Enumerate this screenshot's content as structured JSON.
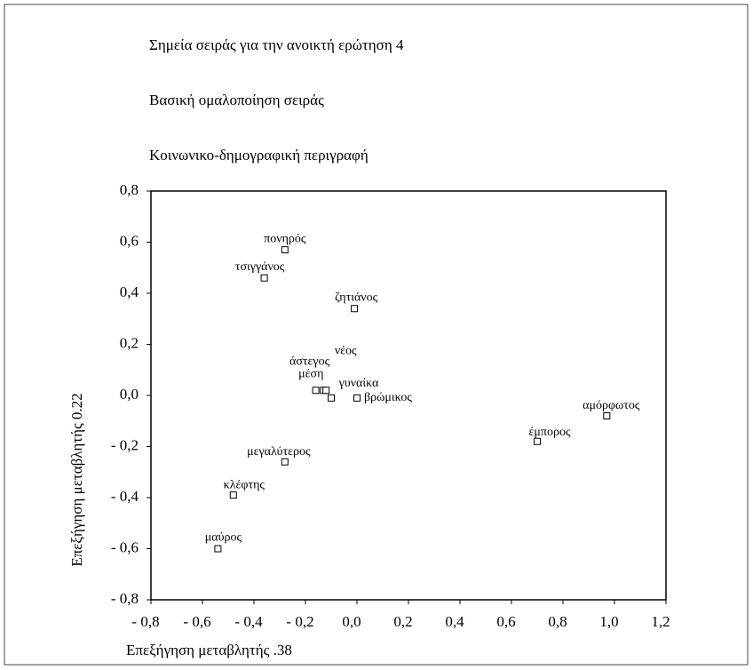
{
  "chart_data": {
    "type": "scatter",
    "title": "Σημεία σειράς για την ανοικτή ερώτηση 4",
    "subtitle": "Βασική ομαλοποίηση σειράς",
    "subtitle2": "Κοινωνικο-δημογραφική περιγραφή",
    "xlabel": "Επεξήγηση μεταβλητής .38",
    "ylabel": "Επεξήγηση μεταβλητής 0.22",
    "xlim": [
      -0.8,
      1.2
    ],
    "ylim": [
      -0.8,
      0.8
    ],
    "xticks": [
      {
        "value": -0.8,
        "label": "- 0,8"
      },
      {
        "value": -0.6,
        "label": "- 0,6"
      },
      {
        "value": -0.4,
        "label": "- 0,4"
      },
      {
        "value": -0.2,
        "label": "- 0,2"
      },
      {
        "value": 0,
        "label": "0,0"
      },
      {
        "value": 0.2,
        "label": "0,2"
      },
      {
        "value": 0.4,
        "label": "0,4"
      },
      {
        "value": 0.6,
        "label": "0,6"
      },
      {
        "value": 0.8,
        "label": "0,8"
      },
      {
        "value": 1,
        "label": "1,0"
      },
      {
        "value": 1.2,
        "label": "1,2"
      }
    ],
    "yticks": [
      {
        "value": 0.8,
        "label": "0,8"
      },
      {
        "value": 0.6,
        "label": "0,6"
      },
      {
        "value": 0.4,
        "label": "0,4"
      },
      {
        "value": 0.2,
        "label": "0,2"
      },
      {
        "value": 0,
        "label": "0,0"
      },
      {
        "value": -0.2,
        "label": "- 0,2"
      },
      {
        "value": -0.4,
        "label": "- 0,4"
      },
      {
        "value": -0.6,
        "label": "- 0,6"
      },
      {
        "value": -0.8,
        "label": "- 0,8"
      }
    ],
    "labels": [
      "πονηρός",
      "τσιγγάνος",
      "ζητιάνος",
      "άστεγος",
      "μέση",
      "νέος",
      "γυναίκα",
      "βρώμικος",
      "αμόρφωτος",
      "έμπορος",
      "μεγαλύτερος",
      "κλέφτης",
      "μαύρος"
    ],
    "x": [
      -0.28,
      -0.36,
      -0.01,
      -0.16,
      -0.13,
      -0.12,
      -0.1,
      0.0,
      0.97,
      0.7,
      -0.28,
      -0.48,
      -0.54
    ],
    "values": [
      0.57,
      0.46,
      0.34,
      0.02,
      0.02,
      0.02,
      -0.01,
      -0.01,
      -0.08,
      -0.18,
      -0.26,
      -0.39,
      -0.6
    ],
    "color": "#000000"
  }
}
